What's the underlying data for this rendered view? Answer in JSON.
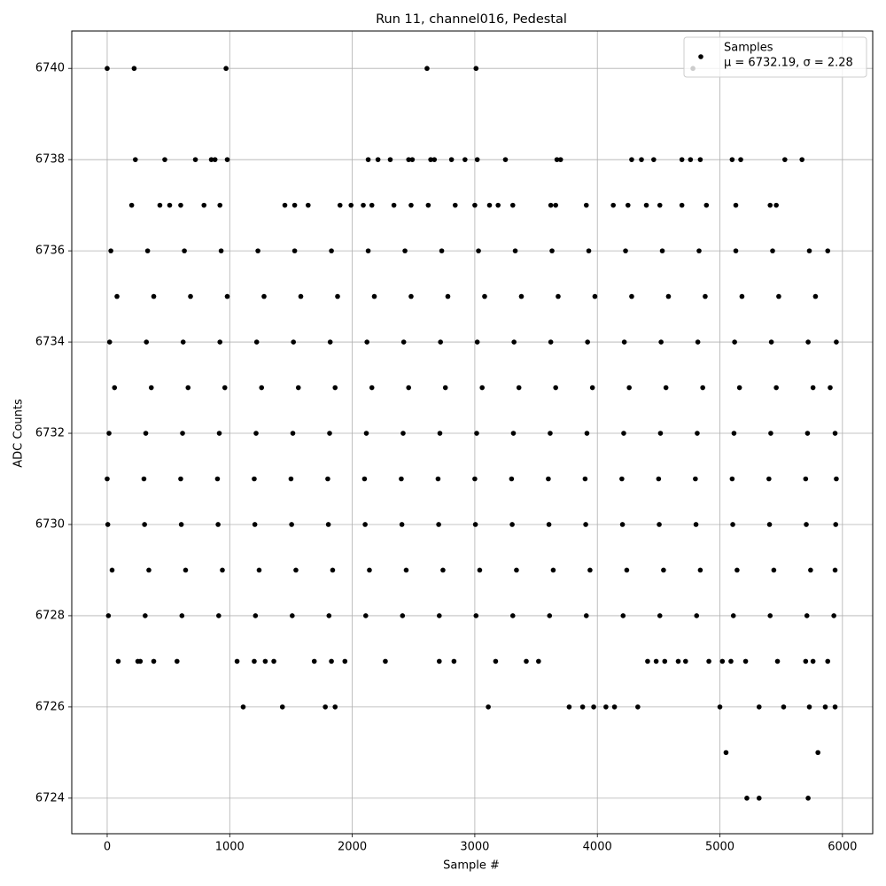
{
  "chart_data": {
    "type": "scatter",
    "title": "Run 11, channel016, Pedestal",
    "x_label": "Sample #",
    "y_label": "ADC Counts",
    "xlim": [
      -289,
      6247
    ],
    "ylim": [
      6723.22,
      6740.82
    ],
    "xticks": [
      0,
      1000,
      2000,
      3000,
      4000,
      5000,
      6000
    ],
    "yticks": [
      6724,
      6726,
      6728,
      6730,
      6732,
      6734,
      6736,
      6738,
      6740
    ],
    "grid": true,
    "legend_position": "upper right",
    "legend_note": "μ = 6732.19, σ = 2.28",
    "series": [
      {
        "name": "Samples",
        "color": "#000000",
        "x": [
          10,
          310,
          610,
          910,
          1210,
          1510,
          1810,
          2110,
          2410,
          2710,
          3010,
          3310,
          3610,
          3910,
          4210,
          4510,
          4810,
          5110,
          5410,
          5710,
          5930,
          40,
          340,
          640,
          940,
          1240,
          1540,
          1840,
          2140,
          2440,
          2740,
          3040,
          3340,
          3640,
          3940,
          4240,
          4540,
          4840,
          5140,
          5440,
          5740,
          5940,
          5,
          305,
          605,
          905,
          1205,
          1505,
          1805,
          2105,
          2405,
          2705,
          3005,
          3305,
          3605,
          3905,
          4205,
          4505,
          4805,
          5105,
          5405,
          5705,
          5945,
          0,
          300,
          600,
          900,
          1200,
          1500,
          1800,
          2100,
          2400,
          2700,
          3000,
          3300,
          3600,
          3900,
          4200,
          4500,
          4800,
          5100,
          5400,
          5700,
          5950,
          15,
          315,
          615,
          915,
          1215,
          1515,
          1815,
          2115,
          2415,
          2715,
          3015,
          3315,
          3615,
          3915,
          4215,
          4515,
          4815,
          5115,
          5415,
          5715,
          5940,
          60,
          360,
          660,
          960,
          1260,
          1560,
          1860,
          2160,
          2460,
          2760,
          3060,
          3360,
          3660,
          3960,
          4260,
          4560,
          4860,
          5160,
          5460,
          5760,
          5900,
          20,
          320,
          620,
          920,
          1220,
          1520,
          1820,
          2120,
          2420,
          2720,
          3020,
          3320,
          3620,
          3920,
          4220,
          4520,
          4820,
          5120,
          5420,
          5720,
          5950,
          80,
          380,
          680,
          980,
          1280,
          1580,
          1880,
          2180,
          2480,
          2780,
          3080,
          3380,
          3680,
          3980,
          4280,
          4580,
          4880,
          5180,
          5480,
          5780,
          30,
          330,
          630,
          930,
          1230,
          1530,
          1830,
          2130,
          2430,
          2730,
          3030,
          3330,
          3630,
          3930,
          4230,
          4530,
          4830,
          5130,
          5430,
          5730,
          5880,
          0,
          220,
          970,
          2610,
          3010,
          4780,
          230,
          470,
          720,
          850,
          880,
          980,
          2130,
          2210,
          2310,
          2460,
          2490,
          2640,
          2670,
          2810,
          2920,
          3020,
          3250,
          3670,
          3700,
          4280,
          4360,
          4460,
          4690,
          4760,
          4840,
          5100,
          5170,
          5530,
          5670,
          200,
          430,
          510,
          600,
          790,
          920,
          1450,
          1530,
          1640,
          1900,
          1990,
          2090,
          2160,
          2340,
          2480,
          2620,
          2840,
          3000,
          3120,
          3190,
          3310,
          3620,
          3660,
          3910,
          4130,
          4250,
          4400,
          4510,
          4690,
          4890,
          5130,
          5410,
          5460,
          90,
          250,
          270,
          380,
          570,
          1060,
          1200,
          1290,
          1360,
          1690,
          1830,
          1940,
          2270,
          2710,
          2830,
          3170,
          3420,
          3520,
          4410,
          4480,
          4550,
          4660,
          4720,
          4910,
          5020,
          5090,
          5210,
          5470,
          5700,
          5760,
          5880,
          1110,
          1430,
          1780,
          1860,
          3110,
          3770,
          3880,
          3970,
          4070,
          4140,
          4330,
          5000,
          5320,
          5520,
          5730,
          5860,
          5940,
          5050,
          5800,
          5220,
          5320,
          5720
        ],
        "values": [
          6728,
          6728,
          6728,
          6728,
          6728,
          6728,
          6728,
          6728,
          6728,
          6728,
          6728,
          6728,
          6728,
          6728,
          6728,
          6728,
          6728,
          6728,
          6728,
          6728,
          6728,
          6729,
          6729,
          6729,
          6729,
          6729,
          6729,
          6729,
          6729,
          6729,
          6729,
          6729,
          6729,
          6729,
          6729,
          6729,
          6729,
          6729,
          6729,
          6729,
          6729,
          6729,
          6730,
          6730,
          6730,
          6730,
          6730,
          6730,
          6730,
          6730,
          6730,
          6730,
          6730,
          6730,
          6730,
          6730,
          6730,
          6730,
          6730,
          6730,
          6730,
          6730,
          6730,
          6731,
          6731,
          6731,
          6731,
          6731,
          6731,
          6731,
          6731,
          6731,
          6731,
          6731,
          6731,
          6731,
          6731,
          6731,
          6731,
          6731,
          6731,
          6731,
          6731,
          6731,
          6732,
          6732,
          6732,
          6732,
          6732,
          6732,
          6732,
          6732,
          6732,
          6732,
          6732,
          6732,
          6732,
          6732,
          6732,
          6732,
          6732,
          6732,
          6732,
          6732,
          6732,
          6733,
          6733,
          6733,
          6733,
          6733,
          6733,
          6733,
          6733,
          6733,
          6733,
          6733,
          6733,
          6733,
          6733,
          6733,
          6733,
          6733,
          6733,
          6733,
          6733,
          6733,
          6734,
          6734,
          6734,
          6734,
          6734,
          6734,
          6734,
          6734,
          6734,
          6734,
          6734,
          6734,
          6734,
          6734,
          6734,
          6734,
          6734,
          6734,
          6734,
          6734,
          6734,
          6735,
          6735,
          6735,
          6735,
          6735,
          6735,
          6735,
          6735,
          6735,
          6735,
          6735,
          6735,
          6735,
          6735,
          6735,
          6735,
          6735,
          6735,
          6735,
          6735,
          6736,
          6736,
          6736,
          6736,
          6736,
          6736,
          6736,
          6736,
          6736,
          6736,
          6736,
          6736,
          6736,
          6736,
          6736,
          6736,
          6736,
          6736,
          6736,
          6736,
          6736,
          6740,
          6740,
          6740,
          6740,
          6740,
          6740,
          6738,
          6738,
          6738,
          6738,
          6738,
          6738,
          6738,
          6738,
          6738,
          6738,
          6738,
          6738,
          6738,
          6738,
          6738,
          6738,
          6738,
          6738,
          6738,
          6738,
          6738,
          6738,
          6738,
          6738,
          6738,
          6738,
          6738,
          6738,
          6738,
          6737,
          6737,
          6737,
          6737,
          6737,
          6737,
          6737,
          6737,
          6737,
          6737,
          6737,
          6737,
          6737,
          6737,
          6737,
          6737,
          6737,
          6737,
          6737,
          6737,
          6737,
          6737,
          6737,
          6737,
          6737,
          6737,
          6737,
          6737,
          6737,
          6737,
          6737,
          6737,
          6737,
          6727,
          6727,
          6727,
          6727,
          6727,
          6727,
          6727,
          6727,
          6727,
          6727,
          6727,
          6727,
          6727,
          6727,
          6727,
          6727,
          6727,
          6727,
          6727,
          6727,
          6727,
          6727,
          6727,
          6727,
          6727,
          6727,
          6727,
          6727,
          6727,
          6727,
          6727,
          6726,
          6726,
          6726,
          6726,
          6726,
          6726,
          6726,
          6726,
          6726,
          6726,
          6726,
          6726,
          6726,
          6726,
          6726,
          6726,
          6726,
          6725,
          6725,
          6724,
          6724,
          6724
        ]
      }
    ]
  }
}
